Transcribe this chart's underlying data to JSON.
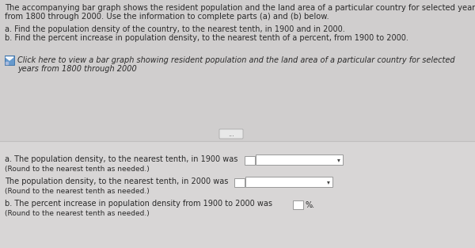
{
  "bg_top": "#d0cece",
  "bg_bottom": "#d8d6d6",
  "divider_color": "#c0bebe",
  "text_color": "#2a2a2a",
  "text_color_light": "#444444",
  "box_fill": "#ffffff",
  "box_border": "#999999",
  "icon_fill": "#6699cc",
  "icon_border": "#4477aa",
  "title_text_line1": "The accompanying bar graph shows the resident population and the land area of a particular country for selected years",
  "title_text_line2": "from 1800 through 2000. Use the information to complete parts (a) and (b) below.",
  "bullet_a": "a. Find the population density of the country, to the nearest tenth, in 1900 and in 2000.",
  "bullet_b": "b. Find the percent increase in population density, to the nearest tenth of a percent, from 1900 to 2000.",
  "click_line1": "Click here to view a bar graph showing resident population and the land area of a particular country for selected",
  "click_line2": "years from 1800 through 2000",
  "ans_a1": "a. The population density, to the nearest tenth, in 1900 was",
  "ans_a1_note": "(Round to the nearest tenth as needed.)",
  "ans_a2": "The population density, to the nearest tenth, in 2000 was",
  "ans_a2_note": "(Round to the nearest tenth as needed.)",
  "ans_b": "b. The percent increase in population density from 1900 to 2000 was",
  "ans_b_suffix": "%.",
  "ans_b_note": "(Round to the nearest tenth as needed.)",
  "fs_title": 7.2,
  "fs_body": 7.0,
  "fs_italic": 7.0,
  "fs_small": 6.5
}
